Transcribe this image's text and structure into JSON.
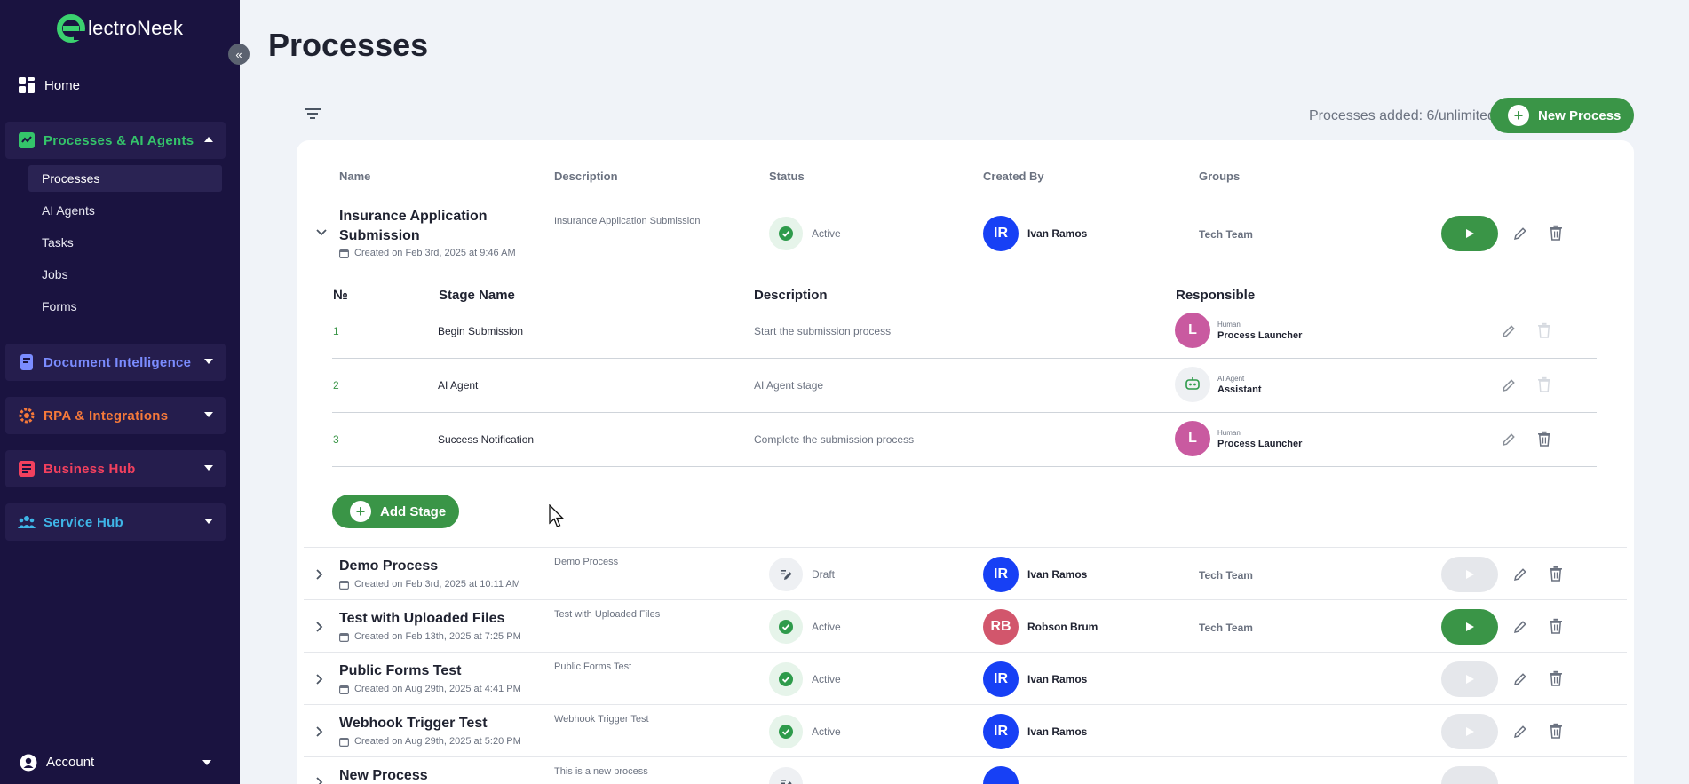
{
  "brand": {
    "logo_text": "lectroNeek",
    "accent": "#3a9547"
  },
  "sidebar": {
    "home": "Home",
    "groups": [
      {
        "label": "Processes & AI Agents",
        "color": "#34c46a",
        "icon": "puzzle-icon",
        "expanded": true
      },
      {
        "label": "Document Intelligence",
        "color": "#7b8cff",
        "icon": "document-icon",
        "expanded": false
      },
      {
        "label": "RPA & Integrations",
        "color": "#f5793a",
        "icon": "gear-icon",
        "expanded": false
      },
      {
        "label": "Business Hub",
        "color": "#f2405e",
        "icon": "checklist-icon",
        "expanded": false
      },
      {
        "label": "Service Hub",
        "color": "#3fb6e8",
        "icon": "people-icon",
        "expanded": false
      }
    ],
    "sub_items": [
      "Processes",
      "AI Agents",
      "Tasks",
      "Jobs",
      "Forms"
    ],
    "account": "Account"
  },
  "page": {
    "title": "Processes",
    "processes_added": "Processes added: 6/unlimited",
    "new_process": "New Process"
  },
  "table": {
    "headers": [
      "Name",
      "Description",
      "Status",
      "Created By",
      "Groups"
    ],
    "rows": [
      {
        "name": "Insurance Application Submission",
        "name_l1": "Insurance Application",
        "name_l2": "Submission",
        "created": "Created on Feb 3rd, 2025 at 9:46 AM",
        "description": "Insurance Application Submission",
        "status": "Active",
        "initials": "IR",
        "creator": "Ivan Ramos",
        "group": "Tech Team",
        "expanded": true
      },
      {
        "name": "Demo Process",
        "created": "Created on Feb 3rd, 2025 at 10:11 AM",
        "description": "Demo Process",
        "status": "Draft",
        "initials": "IR",
        "creator": "Ivan Ramos",
        "group": "Tech Team"
      },
      {
        "name": "Test with Uploaded Files",
        "created": "Created on Feb 13th, 2025 at 7:25 PM",
        "description": "Test with Uploaded Files",
        "status": "Active",
        "initials": "RB",
        "creator": "Robson Brum",
        "group": "Tech Team"
      },
      {
        "name": "Public Forms Test",
        "created": "Created on Aug 29th, 2025 at 4:41 PM",
        "description": "Public Forms Test",
        "status": "Active",
        "initials": "IR",
        "creator": "Ivan Ramos",
        "group": ""
      },
      {
        "name": "Webhook Trigger Test",
        "created": "Created on Aug 29th, 2025 at 5:20 PM",
        "description": "Webhook Trigger Test",
        "status": "Active",
        "initials": "IR",
        "creator": "Ivan Ramos",
        "group": ""
      },
      {
        "name": "New Process",
        "description": "This is a new process"
      }
    ]
  },
  "stages": {
    "headers": [
      "№",
      "Stage Name",
      "Description",
      "Responsible"
    ],
    "rows": [
      {
        "num": "1",
        "name": "Begin Submission",
        "description": "Start the submission process",
        "role": "Human",
        "responsible": "Process Launcher",
        "initial": "L"
      },
      {
        "num": "2",
        "name": "AI Agent",
        "description": "AI Agent stage",
        "role": "AI Agent",
        "responsible": "Assistant",
        "initial": ""
      },
      {
        "num": "3",
        "name": "Success Notification",
        "description": "Complete the submission process",
        "role": "Human",
        "responsible": "Process Launcher",
        "initial": "L"
      }
    ],
    "add_stage": "Add Stage"
  }
}
